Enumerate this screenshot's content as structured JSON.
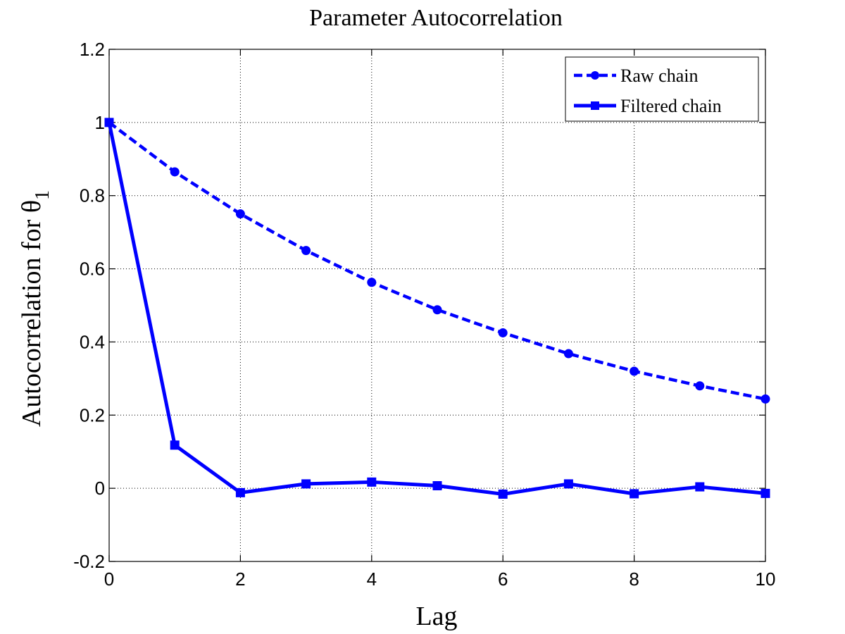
{
  "chart_data": {
    "type": "line",
    "title": "Parameter Autocorrelation",
    "xlabel": "Lag",
    "ylabel": "Autocorrelation for θ",
    "ylabel_subscript": "1",
    "xlim": [
      0,
      10
    ],
    "ylim": [
      -0.2,
      1.2
    ],
    "x_ticks": [
      0,
      2,
      4,
      6,
      8,
      10
    ],
    "x_tick_labels": [
      "0",
      "2",
      "4",
      "6",
      "8",
      "10"
    ],
    "y_ticks": [
      -0.2,
      0,
      0.2,
      0.4,
      0.6,
      0.8,
      1,
      1.2
    ],
    "y_tick_labels": [
      "-0.2",
      "0",
      "0.2",
      "0.4",
      "0.6",
      "0.8",
      "1",
      "1.2"
    ],
    "grid": true,
    "legend_position": "top-right",
    "x": [
      0,
      1,
      2,
      3,
      4,
      5,
      6,
      7,
      8,
      9,
      10
    ],
    "series": [
      {
        "name": "Raw chain",
        "color": "#0000ff",
        "line_style": "dashed",
        "marker": "circle",
        "values": [
          1.0,
          0.865,
          0.75,
          0.65,
          0.563,
          0.488,
          0.425,
          0.368,
          0.32,
          0.28,
          0.244
        ]
      },
      {
        "name": "Filtered chain",
        "color": "#0000ff",
        "line_style": "solid",
        "marker": "square",
        "values": [
          1.0,
          0.118,
          -0.012,
          0.012,
          0.017,
          0.007,
          -0.016,
          0.012,
          -0.015,
          0.004,
          -0.014
        ]
      }
    ]
  }
}
